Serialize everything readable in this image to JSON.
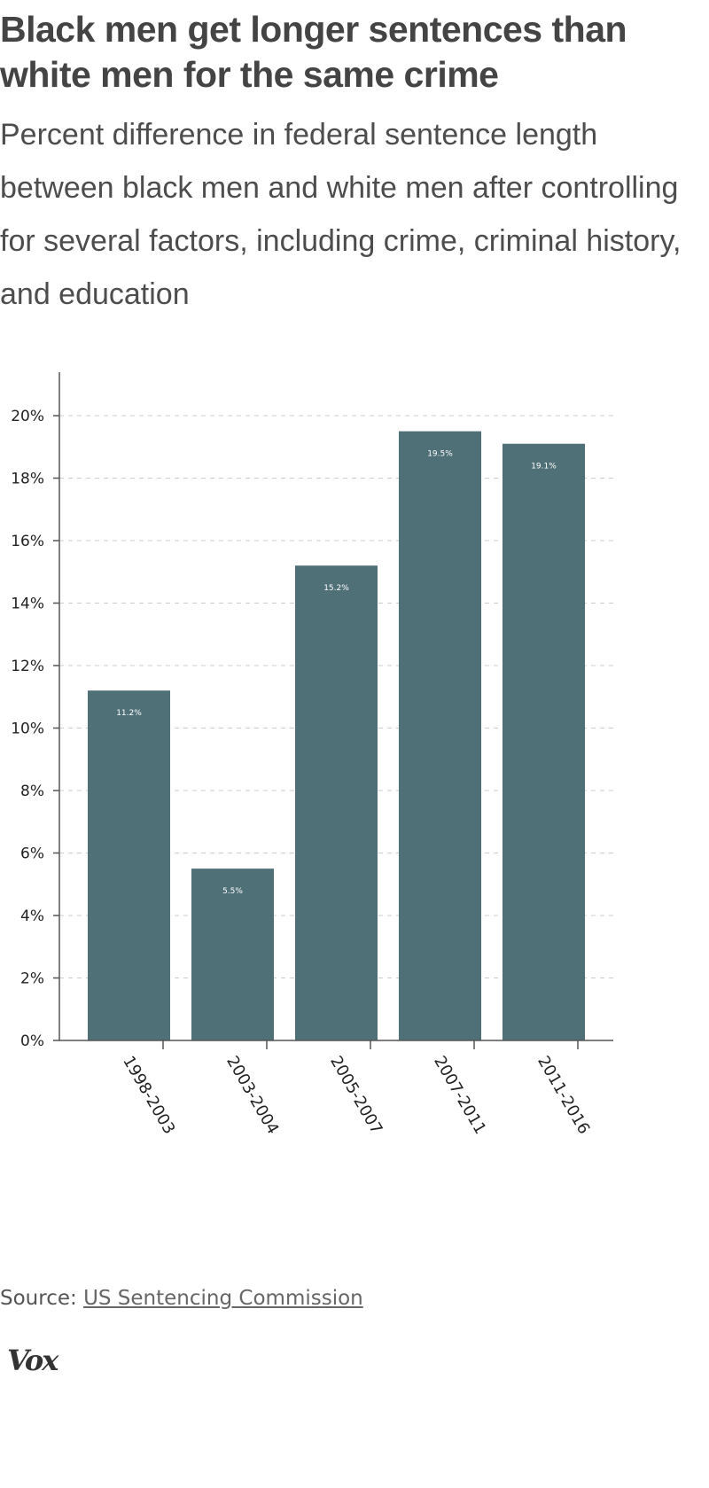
{
  "title": "Black men get longer sentences than white men for the same crime",
  "subtitle": "Percent difference in federal sentence length between black men and white men after controlling for several factors, including crime, criminal history, and education",
  "source": {
    "prefix": "Source:",
    "link_text": "US Sentencing Commission"
  },
  "logo": "Vox",
  "colors": {
    "bar": "#507078",
    "title": "#444444",
    "grid": "#cccccc",
    "axis": "#555555"
  },
  "chart_data": {
    "type": "bar",
    "categories": [
      "1998-2003",
      "2003-2004",
      "2005-2007",
      "2007-2011",
      "2011-2016"
    ],
    "values": [
      11.2,
      5.5,
      15.2,
      19.5,
      19.1
    ],
    "data_labels": [
      "11.2%",
      "5.5%",
      "15.2%",
      "19.5%",
      "19.1%"
    ],
    "yticks": [
      0,
      2,
      4,
      6,
      8,
      10,
      12,
      14,
      16,
      18,
      20
    ],
    "ytick_labels": [
      "0%",
      "2%",
      "4%",
      "6%",
      "8%",
      "10%",
      "12%",
      "14%",
      "16%",
      "18%",
      "20%"
    ],
    "ylim": [
      0,
      21.5
    ],
    "grid": true,
    "grid_style": "dashed",
    "xlabel_rotation": "rotated",
    "title": "Black men get longer sentences than white men for the same crime",
    "xlabel": "",
    "ylabel": ""
  }
}
